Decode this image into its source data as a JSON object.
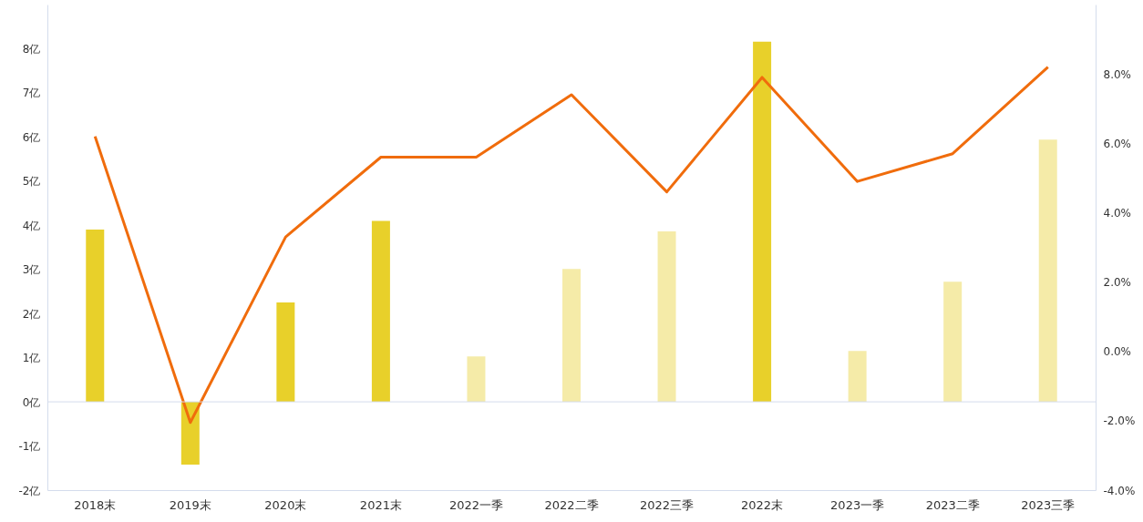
{
  "chart_data": {
    "type": "bar",
    "categories": [
      "2018末",
      "2019末",
      "2020末",
      "2021末",
      "2022一季",
      "2022二季",
      "2022三季",
      "2022末",
      "2023一季",
      "2023二季",
      "2023三季"
    ],
    "ylim": [
      -2,
      9
    ],
    "yticks": [
      {
        "value": -2,
        "label": "-2亿"
      },
      {
        "value": -1,
        "label": "-1亿"
      },
      {
        "value": 0,
        "label": "0亿"
      },
      {
        "value": 1,
        "label": "1亿"
      },
      {
        "value": 2,
        "label": "2亿"
      },
      {
        "value": 3,
        "label": "3亿"
      },
      {
        "value": 4,
        "label": "4亿"
      },
      {
        "value": 5,
        "label": "5亿"
      },
      {
        "value": 6,
        "label": "6亿"
      },
      {
        "value": 7,
        "label": "7亿"
      },
      {
        "value": 8,
        "label": "8亿"
      }
    ],
    "y2lim": [
      -4,
      10
    ],
    "y2ticks": [
      {
        "value": -4,
        "label": "-4.0%"
      },
      {
        "value": -2,
        "label": "-2.0%"
      },
      {
        "value": 0,
        "label": "0.0%"
      },
      {
        "value": 2,
        "label": "2.0%"
      },
      {
        "value": 4,
        "label": "4.0%"
      },
      {
        "value": 6,
        "label": "6.0%"
      },
      {
        "value": 8,
        "label": "8.0%"
      }
    ],
    "series": [
      {
        "values": [
          3.9,
          -1.42,
          2.25,
          4.1,
          1.03,
          3.01,
          3.86,
          8.16,
          1.15,
          2.72,
          5.94
        ],
        "colors": [
          "#e8d02a",
          "#e8d02a",
          "#e8d02a",
          "#e8d02a",
          "#f5eba8",
          "#f5eba8",
          "#f5eba8",
          "#e8d02a",
          "#f5eba8",
          "#f5eba8",
          "#f5eba8"
        ]
      },
      {
        "type": "line",
        "axis": "y2",
        "color": "#f06c0c",
        "values": [
          6.2,
          -2.05,
          3.3,
          5.6,
          5.6,
          7.4,
          4.6,
          7.9,
          4.9,
          5.7,
          8.2
        ]
      }
    ],
    "ref_lines": [
      {
        "axis": "y",
        "value": 0,
        "color": "#d4dcec"
      }
    ],
    "grid": false,
    "marker": "none",
    "line_style": "solid"
  }
}
